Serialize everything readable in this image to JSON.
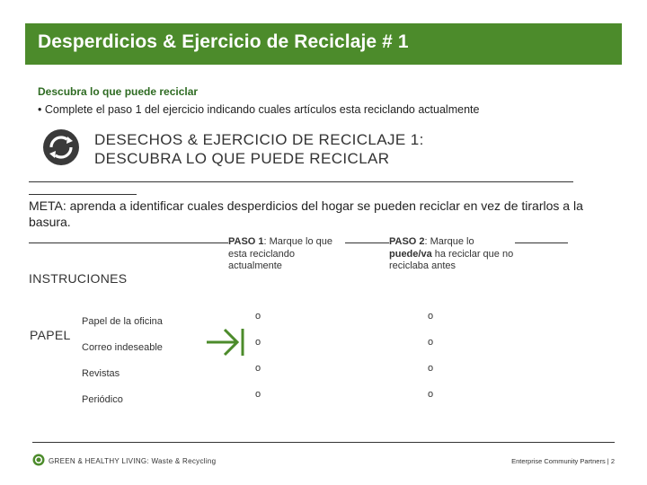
{
  "header": {
    "title": "Desperdicios  & Ejercicio de Reciclaje # 1"
  },
  "intro": {
    "subheading": "Descubra lo que puede reciclar",
    "bullet": "•  Complete el paso 1 del ejercicio indicando cuales artículos esta reciclando actualmente"
  },
  "exercise": {
    "icon": "recycle-icon",
    "title_line1": "DESECHOS & EJERCICIO DE RECICLAJE 1:",
    "title_line2": "DESCUBRA LO QUE PUEDE RECICLAR",
    "meta": "META: aprenda a identificar cuales desperdicios del hogar se pueden reciclar en vez de tirarlos a la basura.",
    "instructions_label": "INSTRUCIONES",
    "step1": {
      "label": "PASO 1",
      "text": ": Marque lo que esta reciclando actualmente"
    },
    "step2": {
      "label": "PASO 2",
      "text_a": ": Marque lo ",
      "emph": "puede/va",
      "text_b": " ha reciclar que no reciclaba antes"
    },
    "category": "PAPEL",
    "items": [
      {
        "name": "Papel de la oficina",
        "step1": "o",
        "step2": "o"
      },
      {
        "name": "Correo indeseable",
        "step1": "o",
        "step2": "o"
      },
      {
        "name": "Revistas",
        "step1": "o",
        "step2": "o"
      },
      {
        "name": "Periódico",
        "step1": "o",
        "step2": "o"
      }
    ]
  },
  "footer": {
    "left": "GREEN & HEALTHY LIVING: Waste & Recycling",
    "right": "Enterprise Community Partners  |  2"
  },
  "colors": {
    "brand_green": "#4c8b2b",
    "subheading_green": "#2e6b22"
  }
}
